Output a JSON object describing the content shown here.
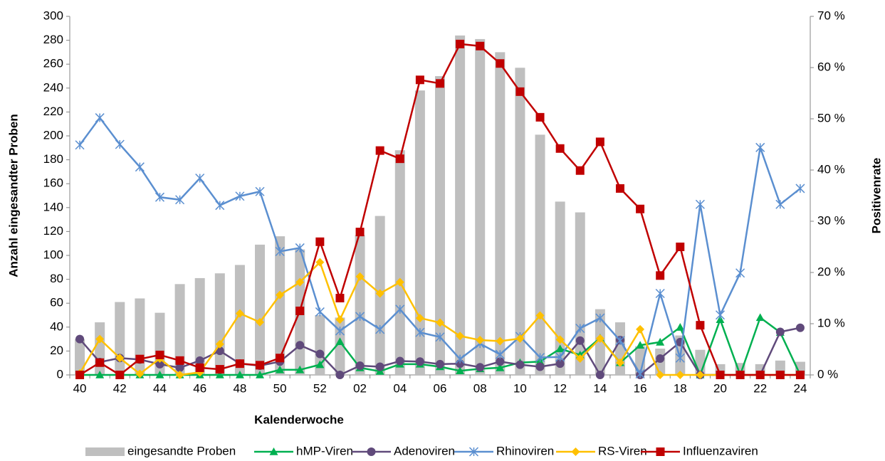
{
  "chart_data": {
    "type": "combo",
    "categories": [
      "40",
      null,
      "42",
      null,
      "44",
      null,
      "46",
      null,
      "48",
      null,
      "50",
      null,
      "52",
      null,
      "02",
      null,
      "04",
      null,
      "06",
      null,
      "08",
      null,
      "10",
      null,
      "12",
      null,
      "14",
      null,
      "16",
      null,
      "18",
      null,
      "20",
      null,
      "22",
      null,
      "24"
    ],
    "x_label": "Kalenderwoche",
    "y_label": "Anzahl eingesandter Proben",
    "y2_label": "Positivenrate",
    "ylim": [
      0,
      300
    ],
    "yticks": [
      0,
      20,
      40,
      60,
      80,
      100,
      120,
      140,
      160,
      180,
      200,
      220,
      240,
      260,
      280,
      300
    ],
    "y2lim": [
      0,
      70
    ],
    "y2ticks": [
      {
        "value": 0,
        "label": "0 %"
      },
      {
        "value": 10,
        "label": "10 %"
      },
      {
        "value": 20,
        "label": "20 %"
      },
      {
        "value": 30,
        "label": "30 %"
      },
      {
        "value": 40,
        "label": "40 %"
      },
      {
        "value": 50,
        "label": "50 %"
      },
      {
        "value": 60,
        "label": "60 %"
      },
      {
        "value": 70,
        "label": "70 %"
      }
    ],
    "legend": "bottom",
    "series": [
      {
        "name": "eingesandte Proben",
        "type": "bar",
        "color": "#bfbfbf",
        "values": [
          30,
          44,
          61,
          64,
          52,
          76,
          81,
          85,
          92,
          109,
          116,
          105,
          50,
          48,
          117,
          133,
          188,
          238,
          250,
          284,
          281,
          270,
          257,
          201,
          145,
          136,
          55,
          44,
          24,
          22,
          33,
          21,
          9,
          10,
          9,
          12,
          11
        ]
      },
      {
        "name": "hMP-Viren",
        "type": "line",
        "axis": "y2",
        "marker": "triangle",
        "color": "#00b050",
        "values": [
          0,
          0,
          0,
          0,
          0,
          0,
          0,
          0,
          0,
          0,
          1,
          1,
          2,
          6.5,
          1.4,
          0.7,
          2.1,
          2.1,
          1.6,
          0.8,
          1.2,
          1.4,
          2.4,
          2.6,
          5.1,
          3.9,
          7.2,
          2.4,
          5.8,
          6.4,
          9.3,
          0,
          10.8,
          0,
          11.2,
          8.3,
          0
        ]
      },
      {
        "name": "Adenoviren",
        "type": "line",
        "axis": "y2",
        "marker": "circle",
        "color": "#604a7b",
        "values": [
          7,
          2.5,
          3.3,
          3,
          2.1,
          1.4,
          2.8,
          4.7,
          2.2,
          1.8,
          2.6,
          5.8,
          4.1,
          0,
          1.8,
          1.6,
          2.7,
          2.6,
          2.1,
          2.2,
          1.5,
          2.6,
          2,
          1.6,
          2.2,
          6.7,
          0,
          6.8,
          0,
          3.2,
          6.4,
          0,
          0,
          0,
          0,
          8.4,
          9.2
        ]
      },
      {
        "name": "Rhinoviren",
        "type": "line",
        "axis": "y2",
        "marker": "star",
        "color": "#5b8fd0",
        "values": [
          44.9,
          50.2,
          45,
          40.6,
          34.7,
          34.2,
          38.4,
          33.1,
          34.9,
          35.8,
          24.1,
          24.8,
          12.3,
          8.6,
          11.4,
          8.9,
          12.8,
          8.3,
          7.4,
          3.1,
          6.1,
          4,
          7.5,
          3.4,
          3.5,
          9.1,
          11.1,
          6.7,
          0.2,
          15.9,
          3.3,
          33.3,
          11.7,
          19.9,
          44.4,
          33.3,
          36.4
        ]
      },
      {
        "name": "RS-Viren",
        "type": "line",
        "axis": "y2",
        "marker": "diamond",
        "color": "#ffc000",
        "values": [
          0.3,
          7,
          3.3,
          0.2,
          3.2,
          0,
          0.5,
          6,
          12,
          10.3,
          15.6,
          18.1,
          22,
          10.8,
          19.2,
          15.9,
          18.1,
          11.1,
          10.2,
          7.6,
          6.8,
          6.6,
          7.1,
          11.6,
          6.9,
          3.2,
          7.1,
          2.4,
          8.9,
          0,
          0,
          0,
          0,
          0,
          0,
          0,
          0
        ]
      },
      {
        "name": "Influenzaviren",
        "type": "line",
        "axis": "y2",
        "marker": "square",
        "color": "#c00000",
        "values": [
          0,
          2.4,
          0,
          3.1,
          3.9,
          2.8,
          1.4,
          1.1,
          2.2,
          1.9,
          3.3,
          12.5,
          26,
          15,
          27.9,
          43.8,
          42.2,
          57.6,
          56.9,
          64.6,
          64.2,
          60.8,
          55.3,
          50.3,
          44.2,
          39.9,
          45.5,
          36.4,
          32.4,
          19.4,
          25,
          9.7,
          0,
          0,
          0,
          0,
          0
        ]
      }
    ]
  }
}
